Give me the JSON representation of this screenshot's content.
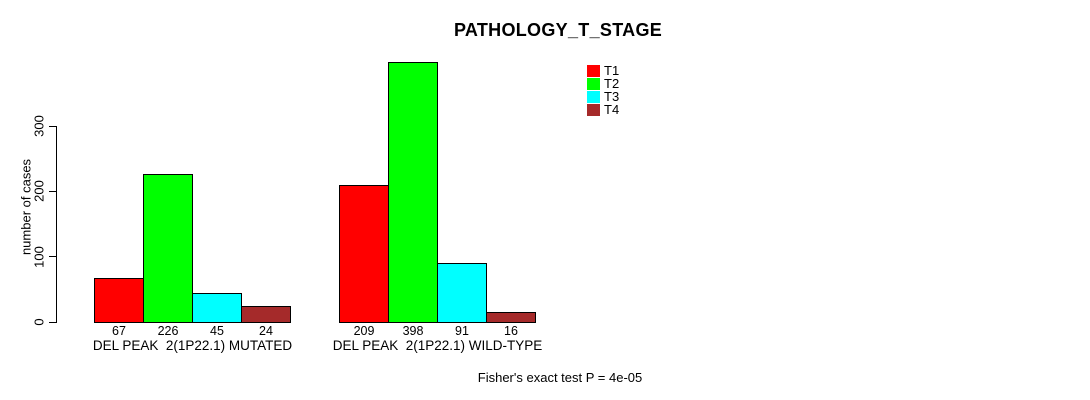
{
  "chart_data": {
    "type": "bar",
    "title": "PATHOLOGY_T_STAGE",
    "ylabel": "number of cases",
    "xlabel": "",
    "ylim": [
      0,
      300
    ],
    "yticks": [
      0,
      100,
      200,
      300
    ],
    "grid": false,
    "legend_position": "top-right",
    "categories": [
      "DEL PEAK  2(1P22.1) MUTATED",
      "DEL PEAK  2(1P22.1) WILD-TYPE"
    ],
    "series": [
      {
        "name": "T1",
        "color": "#ff0000",
        "values": [
          67,
          209
        ]
      },
      {
        "name": "T2",
        "color": "#00ff00",
        "values": [
          226,
          398
        ]
      },
      {
        "name": "T3",
        "color": "#00ffff",
        "values": [
          45,
          91
        ]
      },
      {
        "name": "T4",
        "color": "#a52a2a",
        "values": [
          24,
          16
        ]
      }
    ],
    "bar_value_labels_shown": true,
    "footnote": "Fisher's exact test P = 4e-05"
  }
}
